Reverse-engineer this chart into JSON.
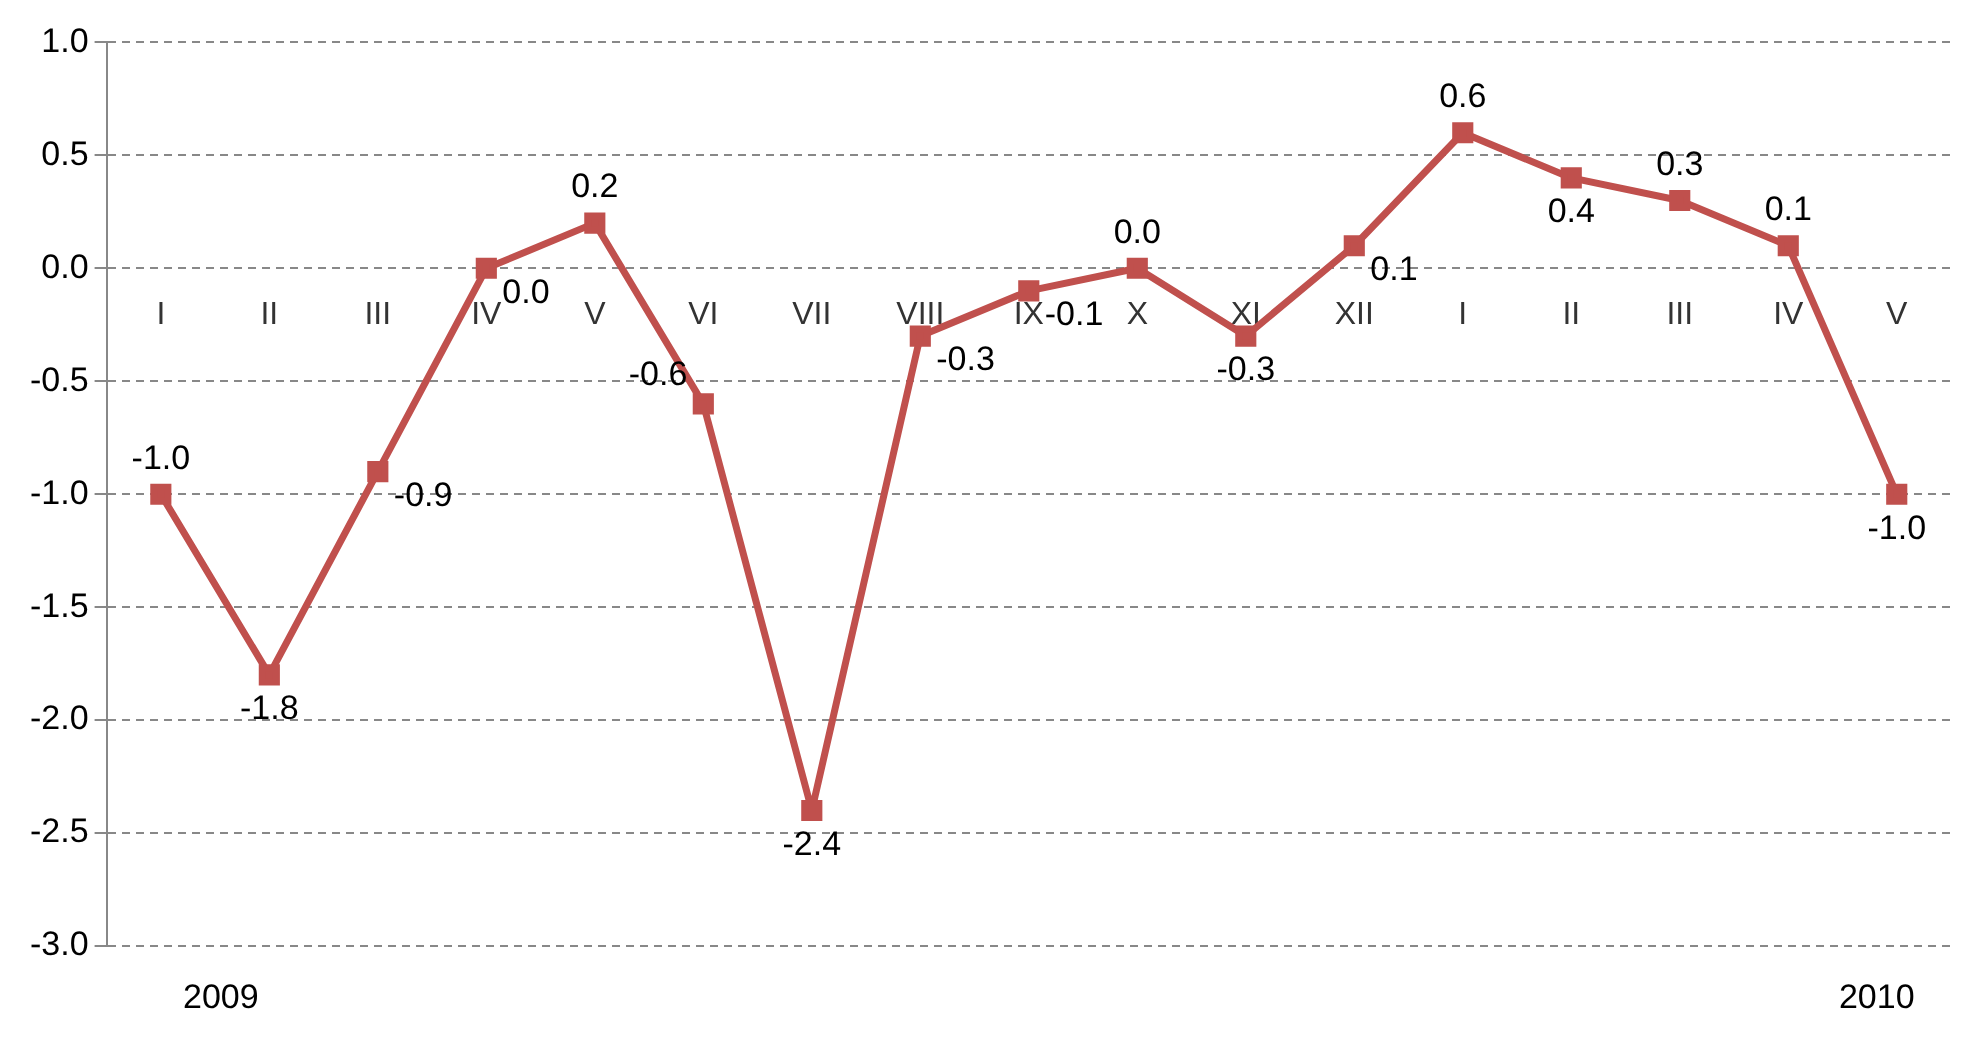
{
  "chart_data": {
    "type": "line",
    "categories": [
      "I",
      "II",
      "III",
      "IV",
      "V",
      "VI",
      "VII",
      "VIII",
      "IX",
      "X",
      "XI",
      "XII",
      "I",
      "II",
      "III",
      "IV",
      "V"
    ],
    "series": [
      {
        "color": "#c0504d",
        "values": [
          -1.0,
          -1.8,
          -0.9,
          0.0,
          0.2,
          -0.6,
          -2.4,
          -0.3,
          -0.1,
          0.0,
          -0.3,
          0.1,
          0.6,
          0.4,
          0.3,
          0.1,
          -1.0
        ],
        "value_labels": [
          "-1.0",
          "-1.8",
          "-0.9",
          "0.0",
          "0.2",
          "-0.6",
          "-2.4",
          "-0.3",
          "-0.1",
          "0.0",
          "-0.3",
          "0.1",
          "0.6",
          "0.4",
          "0.3",
          "0.1",
          "-1.0"
        ]
      }
    ],
    "ylim": [
      -3.0,
      1.0
    ],
    "yticks": [
      {
        "value": -3,
        "label": "-3.0"
      },
      {
        "value": -2.5,
        "label": "-2.5"
      },
      {
        "value": -2,
        "label": "-2.0"
      },
      {
        "value": -1.5,
        "label": "-1.5"
      },
      {
        "value": -1,
        "label": "-1.0"
      },
      {
        "value": -0.5,
        "label": "-0.5"
      },
      {
        "value": 0,
        "label": "0.0"
      },
      {
        "value": 0.5,
        "label": "0.5"
      },
      {
        "value": 1,
        "label": "1.0"
      }
    ],
    "annotations": [
      "2009",
      "2010"
    ],
    "grid": "y",
    "marker": "square",
    "line_style": "solid",
    "legend": false
  }
}
